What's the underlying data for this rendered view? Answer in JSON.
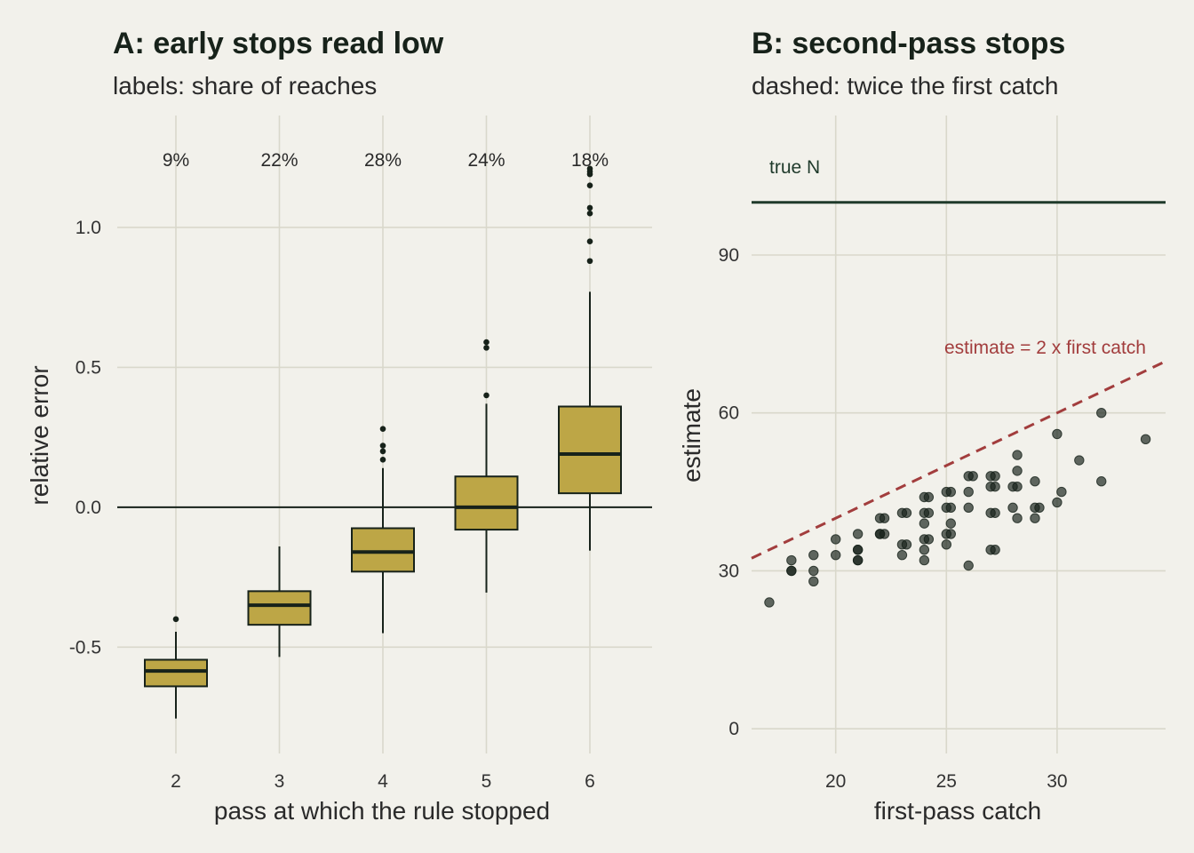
{
  "chart_data": [
    {
      "type": "box",
      "title": "A: early stops read low",
      "subtitle": "labels: share of reaches",
      "xlabel": "pass at which the rule stopped",
      "ylabel": "relative error",
      "categories": [
        "2",
        "3",
        "4",
        "5",
        "6"
      ],
      "share_labels": [
        "9%",
        "22%",
        "28%",
        "24%",
        "18%"
      ],
      "boxes": [
        {
          "q1": -0.64,
          "median": -0.585,
          "q3": -0.545,
          "whisker_low": -0.755,
          "whisker_high": -0.445,
          "outliers": [
            -0.4
          ]
        },
        {
          "q1": -0.42,
          "median": -0.35,
          "q3": -0.3,
          "whisker_low": -0.535,
          "whisker_high": -0.14,
          "outliers": []
        },
        {
          "q1": -0.23,
          "median": -0.16,
          "q3": -0.075,
          "whisker_low": -0.45,
          "whisker_high": 0.14,
          "outliers": [
            0.17,
            0.2,
            0.22,
            0.28
          ]
        },
        {
          "q1": -0.08,
          "median": 0.0,
          "q3": 0.11,
          "whisker_low": -0.305,
          "whisker_high": 0.37,
          "outliers": [
            0.4,
            0.57,
            0.59
          ]
        },
        {
          "q1": 0.05,
          "median": 0.19,
          "q3": 0.36,
          "whisker_low": -0.155,
          "whisker_high": 0.77,
          "outliers": [
            0.88,
            0.95,
            1.05,
            1.07,
            1.15,
            1.19,
            1.2,
            1.21
          ]
        }
      ],
      "yticks": [
        -0.5,
        0.0,
        0.5,
        1.0
      ],
      "ytick_labels": [
        "-0.5",
        "0.0",
        "0.5",
        "1.0"
      ],
      "ylim": [
        -0.88,
        1.4
      ],
      "reference_line": 0.0,
      "grid": true,
      "colors": {
        "box_fill": "#bda646",
        "outline": "#17221a",
        "grid": "#d9d8cb"
      }
    },
    {
      "type": "scatter",
      "title": "B: second-pass stops",
      "subtitle": "dashed: twice the first catch",
      "xlabel": "first-pass catch",
      "ylabel": "estimate",
      "xticks": [
        20,
        25,
        30
      ],
      "xtick_labels": [
        "20",
        "25",
        "30"
      ],
      "yticks": [
        0,
        30,
        60,
        90
      ],
      "ytick_labels": [
        "0",
        "30",
        "60",
        "90"
      ],
      "xlim": [
        16.2,
        34.9
      ],
      "ylim": [
        -4.7,
        116.5
      ],
      "true_n": {
        "value": 100,
        "label": "true N"
      },
      "dashed_line": {
        "slope": 2,
        "label": "estimate = 2 x first catch"
      },
      "points": [
        [
          17,
          24
        ],
        [
          18,
          32
        ],
        [
          18,
          30
        ],
        [
          18,
          30
        ],
        [
          19,
          33
        ],
        [
          19,
          30
        ],
        [
          19,
          28
        ],
        [
          20,
          33
        ],
        [
          20,
          36
        ],
        [
          21,
          37
        ],
        [
          21,
          34
        ],
        [
          21,
          34
        ],
        [
          21,
          32
        ],
        [
          21,
          32
        ],
        [
          22,
          40
        ],
        [
          22,
          37
        ],
        [
          22,
          37
        ],
        [
          22.2,
          40
        ],
        [
          22.2,
          37
        ],
        [
          23,
          41
        ],
        [
          23,
          35
        ],
        [
          23,
          33
        ],
        [
          23.2,
          41
        ],
        [
          23.2,
          35
        ],
        [
          24,
          44
        ],
        [
          24,
          41
        ],
        [
          24,
          39
        ],
        [
          24,
          36
        ],
        [
          24,
          34
        ],
        [
          24,
          32
        ],
        [
          24.2,
          44
        ],
        [
          24.2,
          41
        ],
        [
          24.2,
          36
        ],
        [
          25,
          45
        ],
        [
          25,
          42
        ],
        [
          25,
          37
        ],
        [
          25,
          35
        ],
        [
          25.2,
          45
        ],
        [
          25.2,
          42
        ],
        [
          25.2,
          39
        ],
        [
          25.2,
          37
        ],
        [
          26,
          48
        ],
        [
          26,
          45
        ],
        [
          26,
          42
        ],
        [
          26,
          31
        ],
        [
          26.2,
          48
        ],
        [
          27,
          48
        ],
        [
          27,
          46
        ],
        [
          27,
          41
        ],
        [
          27,
          34
        ],
        [
          27.2,
          48
        ],
        [
          27.2,
          46
        ],
        [
          27.2,
          41
        ],
        [
          27.2,
          34
        ],
        [
          28,
          46
        ],
        [
          28,
          42
        ],
        [
          28.2,
          52
        ],
        [
          28.2,
          49
        ],
        [
          28.2,
          46
        ],
        [
          28.2,
          40
        ],
        [
          29,
          47
        ],
        [
          29,
          42
        ],
        [
          29,
          40
        ],
        [
          29.2,
          42
        ],
        [
          30,
          56
        ],
        [
          30,
          43
        ],
        [
          30.2,
          45
        ],
        [
          31,
          51
        ],
        [
          32,
          60
        ],
        [
          32,
          47
        ],
        [
          34,
          55
        ]
      ],
      "grid": true,
      "colors": {
        "points": "#17221a",
        "true_n_line": "#1f3a2b",
        "dashed_line": "#a23d3d",
        "grid": "#d9d8cb"
      }
    }
  ]
}
